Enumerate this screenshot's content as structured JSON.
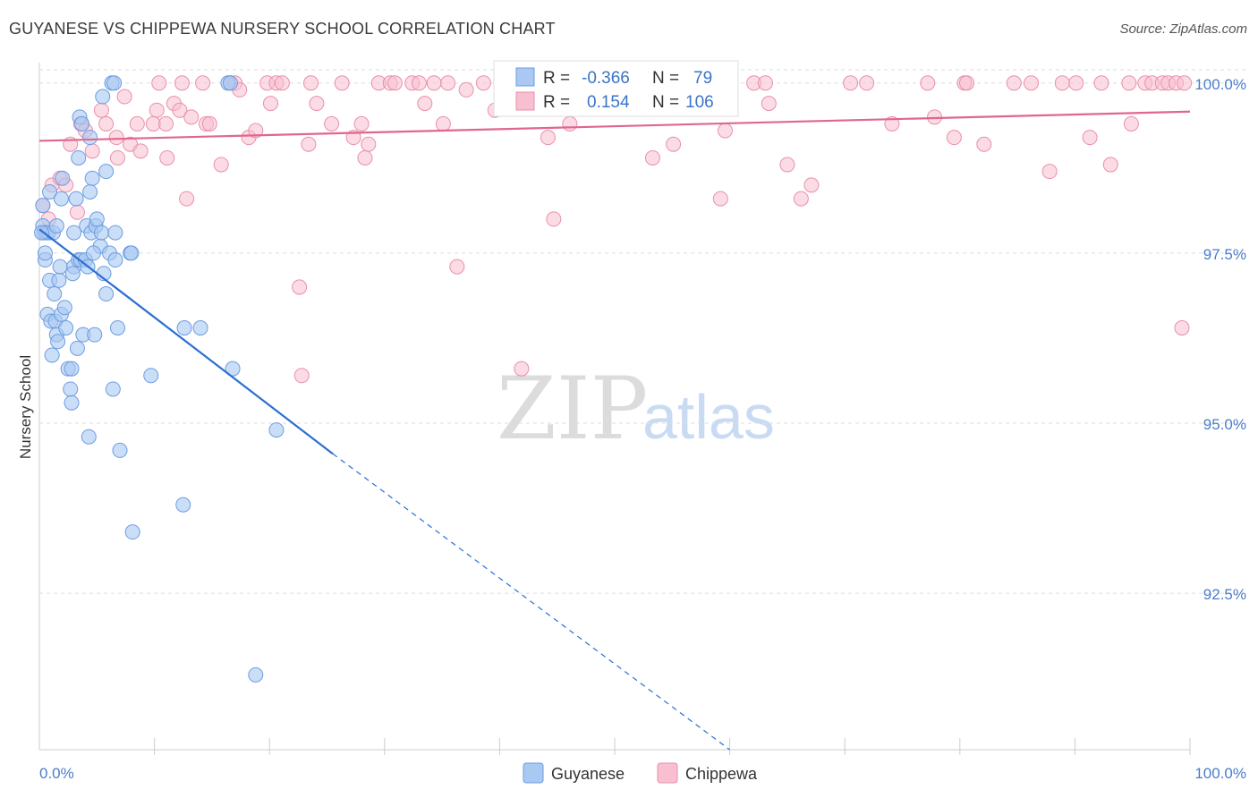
{
  "title": "GUYANESE VS CHIPPEWA NURSERY SCHOOL CORRELATION CHART",
  "source": "Source: ZipAtlas.com",
  "watermark": {
    "zip": "ZIP",
    "atlas": "atlas"
  },
  "colors": {
    "guyanese_fill": "#a9c8f2",
    "guyanese_stroke": "#6d9de0",
    "guyanese_line": "#2a6fd1",
    "chippewa_fill": "#f7bfd0",
    "chippewa_stroke": "#ea8fac",
    "chippewa_line": "#e0668f",
    "tick_text": "#4a7cc9",
    "grid": "#dddddd"
  },
  "legend": {
    "rows": [
      {
        "r_label": "R =",
        "r_value": "-0.366",
        "n_label": "N =",
        "n_value": "79"
      },
      {
        "r_label": "R =",
        "r_value": "0.154",
        "n_label": "N =",
        "n_value": "106"
      }
    ]
  },
  "chart_data": {
    "type": "scatter",
    "title": "GUYANESE VS CHIPPEWA NURSERY SCHOOL CORRELATION CHART",
    "xlabel": "",
    "ylabel": "Nursery School",
    "xlim": [
      0,
      100
    ],
    "ylim": [
      90.2,
      100.3
    ],
    "x_tick_labels": [
      "0.0%",
      "100.0%"
    ],
    "y_ticks": [
      100.0,
      97.5,
      95.0,
      92.5
    ],
    "y_tick_labels": [
      "100.0%",
      "97.5%",
      "95.0%",
      "92.5%"
    ],
    "grid": true,
    "legend_position": "top-center",
    "series": [
      {
        "name": "Guyanese",
        "r": -0.366,
        "n": 79,
        "trend": {
          "x0": 0,
          "y0": 97.85,
          "x1": 25.5,
          "y1": 94.55,
          "dashed_to_x": 60,
          "dashed_to_y": 90.2
        },
        "points": [
          [
            0.3,
            98.2
          ],
          [
            0.3,
            97.9
          ],
          [
            0.4,
            97.8
          ],
          [
            0.6,
            97.8
          ],
          [
            0.5,
            97.4
          ],
          [
            0.7,
            96.6
          ],
          [
            0.9,
            97.1
          ],
          [
            1.0,
            96.5
          ],
          [
            0.8,
            97.8
          ],
          [
            0.9,
            98.4
          ],
          [
            1.2,
            97.8
          ],
          [
            1.3,
            96.9
          ],
          [
            1.4,
            96.5
          ],
          [
            1.5,
            96.3
          ],
          [
            1.6,
            96.2
          ],
          [
            1.7,
            97.1
          ],
          [
            1.8,
            97.3
          ],
          [
            1.9,
            96.6
          ],
          [
            1.9,
            98.3
          ],
          [
            2.0,
            98.6
          ],
          [
            2.2,
            96.7
          ],
          [
            2.5,
            95.8
          ],
          [
            2.7,
            95.5
          ],
          [
            2.8,
            95.8
          ],
          [
            2.8,
            95.3
          ],
          [
            3.0,
            97.3
          ],
          [
            3.0,
            97.8
          ],
          [
            3.2,
            98.3
          ],
          [
            3.4,
            97.4
          ],
          [
            3.4,
            98.9
          ],
          [
            3.5,
            99.5
          ],
          [
            3.6,
            97.4
          ],
          [
            3.7,
            99.4
          ],
          [
            3.8,
            96.3
          ],
          [
            4.0,
            97.4
          ],
          [
            4.1,
            97.9
          ],
          [
            4.2,
            97.3
          ],
          [
            4.3,
            94.8
          ],
          [
            4.4,
            99.2
          ],
          [
            4.4,
            98.4
          ],
          [
            4.5,
            97.8
          ],
          [
            4.6,
            98.6
          ],
          [
            4.8,
            96.3
          ],
          [
            4.9,
            97.9
          ],
          [
            5.0,
            98.0
          ],
          [
            5.3,
            97.6
          ],
          [
            5.4,
            97.8
          ],
          [
            5.5,
            99.8
          ],
          [
            5.6,
            97.2
          ],
          [
            5.8,
            96.9
          ],
          [
            5.8,
            98.7
          ],
          [
            6.1,
            97.5
          ],
          [
            6.3,
            100.0
          ],
          [
            6.4,
            95.5
          ],
          [
            6.5,
            100.0
          ],
          [
            6.6,
            97.8
          ],
          [
            6.6,
            97.4
          ],
          [
            6.8,
            96.4
          ],
          [
            7.0,
            94.6
          ],
          [
            7.9,
            97.5
          ],
          [
            8.0,
            97.5
          ],
          [
            8.1,
            93.4
          ],
          [
            9.7,
            95.7
          ],
          [
            12.5,
            93.8
          ],
          [
            12.6,
            96.4
          ],
          [
            14.0,
            96.4
          ],
          [
            16.4,
            100.0
          ],
          [
            16.6,
            100.0
          ],
          [
            16.8,
            95.8
          ],
          [
            18.8,
            91.3
          ],
          [
            20.6,
            94.9
          ],
          [
            0.2,
            97.8
          ],
          [
            0.5,
            97.5
          ],
          [
            1.1,
            96.0
          ],
          [
            1.5,
            97.9
          ],
          [
            2.3,
            96.4
          ],
          [
            2.9,
            97.2
          ],
          [
            3.3,
            96.1
          ],
          [
            4.7,
            97.5
          ]
        ]
      },
      {
        "name": "Chippewa",
        "r": 0.154,
        "n": 106,
        "trend": {
          "x0": 0,
          "y0": 99.15,
          "x1": 100,
          "y1": 99.58
        },
        "points": [
          [
            0.3,
            98.2
          ],
          [
            1.1,
            98.5
          ],
          [
            1.8,
            98.6
          ],
          [
            2.3,
            98.5
          ],
          [
            2.7,
            99.1
          ],
          [
            3.3,
            98.1
          ],
          [
            3.6,
            99.4
          ],
          [
            4.0,
            99.3
          ],
          [
            4.6,
            99.0
          ],
          [
            5.4,
            99.6
          ],
          [
            5.8,
            99.4
          ],
          [
            6.7,
            99.2
          ],
          [
            6.8,
            98.9
          ],
          [
            7.4,
            99.8
          ],
          [
            7.9,
            99.1
          ],
          [
            8.5,
            99.4
          ],
          [
            8.8,
            99.0
          ],
          [
            9.9,
            99.4
          ],
          [
            10.2,
            99.6
          ],
          [
            10.4,
            100.0
          ],
          [
            11.0,
            99.4
          ],
          [
            11.1,
            98.9
          ],
          [
            11.7,
            99.7
          ],
          [
            12.2,
            99.6
          ],
          [
            12.4,
            100.0
          ],
          [
            12.8,
            98.3
          ],
          [
            13.2,
            99.5
          ],
          [
            14.2,
            100.0
          ],
          [
            14.5,
            99.4
          ],
          [
            14.8,
            99.4
          ],
          [
            15.8,
            98.8
          ],
          [
            16.6,
            100.0
          ],
          [
            17.0,
            100.0
          ],
          [
            17.4,
            99.9
          ],
          [
            18.2,
            99.2
          ],
          [
            18.8,
            99.3
          ],
          [
            19.8,
            100.0
          ],
          [
            20.1,
            99.7
          ],
          [
            20.6,
            100.0
          ],
          [
            21.1,
            100.0
          ],
          [
            22.6,
            97.0
          ],
          [
            22.8,
            95.7
          ],
          [
            23.4,
            99.1
          ],
          [
            23.6,
            100.0
          ],
          [
            24.1,
            99.7
          ],
          [
            25.4,
            99.4
          ],
          [
            26.3,
            100.0
          ],
          [
            27.3,
            99.2
          ],
          [
            28.0,
            99.4
          ],
          [
            28.3,
            98.9
          ],
          [
            28.6,
            99.1
          ],
          [
            29.5,
            100.0
          ],
          [
            30.5,
            100.0
          ],
          [
            30.9,
            100.0
          ],
          [
            32.4,
            100.0
          ],
          [
            33.0,
            100.0
          ],
          [
            33.5,
            99.7
          ],
          [
            34.3,
            100.0
          ],
          [
            35.1,
            99.4
          ],
          [
            35.5,
            100.0
          ],
          [
            36.3,
            97.3
          ],
          [
            37.1,
            99.9
          ],
          [
            38.6,
            100.0
          ],
          [
            39.6,
            99.6
          ],
          [
            41.0,
            100.0
          ],
          [
            41.9,
            95.8
          ],
          [
            43.5,
            100.0
          ],
          [
            44.2,
            99.2
          ],
          [
            44.7,
            98.0
          ],
          [
            45.1,
            100.0
          ],
          [
            46.1,
            99.4
          ],
          [
            47.0,
            100.0
          ],
          [
            49.8,
            100.0
          ],
          [
            51.7,
            100.0
          ],
          [
            53.3,
            98.9
          ],
          [
            54.3,
            100.0
          ],
          [
            55.1,
            99.1
          ],
          [
            56.3,
            100.0
          ],
          [
            57.6,
            100.0
          ],
          [
            59.2,
            98.3
          ],
          [
            59.6,
            99.3
          ],
          [
            62.1,
            100.0
          ],
          [
            63.1,
            100.0
          ],
          [
            63.4,
            99.7
          ],
          [
            65.0,
            98.8
          ],
          [
            66.2,
            98.3
          ],
          [
            67.1,
            98.5
          ],
          [
            70.5,
            100.0
          ],
          [
            71.9,
            100.0
          ],
          [
            74.1,
            99.4
          ],
          [
            77.2,
            100.0
          ],
          [
            77.8,
            99.5
          ],
          [
            79.5,
            99.2
          ],
          [
            80.4,
            100.0
          ],
          [
            80.6,
            100.0
          ],
          [
            82.1,
            99.1
          ],
          [
            84.7,
            100.0
          ],
          [
            86.2,
            100.0
          ],
          [
            87.8,
            98.7
          ],
          [
            88.9,
            100.0
          ],
          [
            90.1,
            100.0
          ],
          [
            91.3,
            99.2
          ],
          [
            92.3,
            100.0
          ],
          [
            93.1,
            98.8
          ],
          [
            94.7,
            100.0
          ],
          [
            94.9,
            99.4
          ]
        ]
      }
    ],
    "extra_chippewa": [
      [
        96.1,
        100.0
      ],
      [
        96.7,
        100.0
      ],
      [
        97.6,
        100.0
      ],
      [
        98.1,
        100.0
      ],
      [
        98.8,
        100.0
      ],
      [
        99.5,
        100.0
      ],
      [
        99.3,
        96.4
      ],
      [
        0.8,
        98.0
      ]
    ]
  },
  "bottom_legend": [
    "Guyanese",
    "Chippewa"
  ]
}
